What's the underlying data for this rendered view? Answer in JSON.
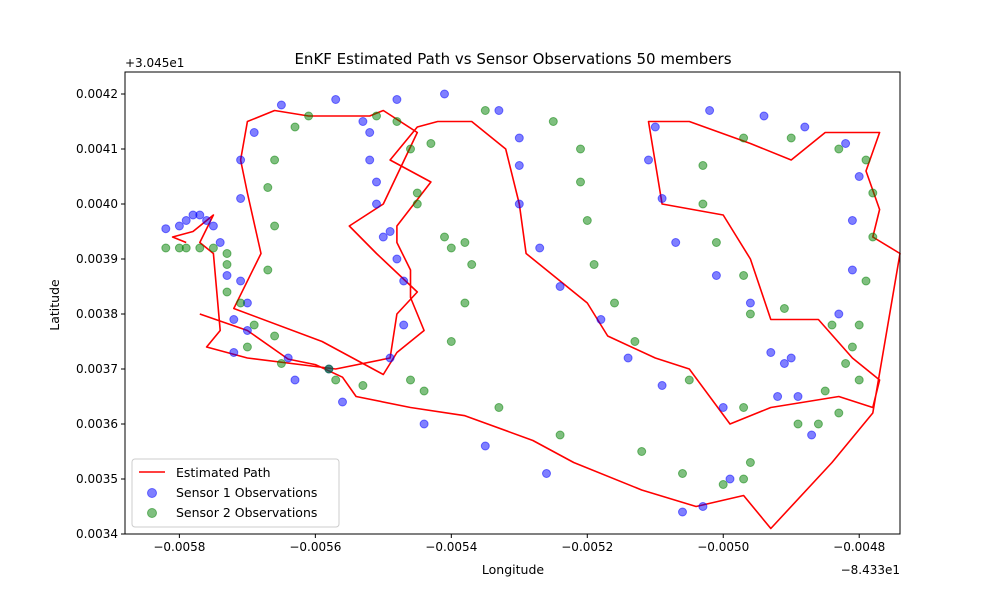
{
  "chart_data": {
    "type": "scatter",
    "title": "EnKF Estimated Path vs Sensor Observations 50 members",
    "xlabel": "Longitude",
    "ylabel": "Latitude",
    "x_offset_label": "−8.433e1",
    "y_offset_label": "+3.045e1",
    "xlim": [
      -0.00588,
      -0.00474
    ],
    "ylim": [
      0.0034,
      0.00424
    ],
    "xticks": [
      -0.0058,
      -0.0056,
      -0.0054,
      -0.0052,
      -0.005,
      -0.0048
    ],
    "xtick_labels": [
      "−0.0058",
      "−0.0056",
      "−0.0054",
      "−0.0052",
      "−0.0050",
      "−0.0048"
    ],
    "yticks": [
      0.0034,
      0.0035,
      0.0036,
      0.0037,
      0.0038,
      0.0039,
      0.004,
      0.0041,
      0.0042
    ],
    "ytick_labels": [
      "0.0034",
      "0.0035",
      "0.0036",
      "0.0037",
      "0.0038",
      "0.0039",
      "0.0040",
      "0.0041",
      "0.0042"
    ],
    "grid": false,
    "legend_position": "lower-left",
    "series": [
      {
        "name": "Estimated Path",
        "kind": "line",
        "color": "#ff0000",
        "points": [
          [
            -0.00577,
            0.0038
          ],
          [
            -0.0057,
            0.00377
          ],
          [
            -0.00564,
            0.003718
          ],
          [
            -0.0056,
            0.003708
          ],
          [
            -0.00556,
            0.003685
          ],
          [
            -0.00554,
            0.00365
          ],
          [
            -0.00546,
            0.00363
          ],
          [
            -0.00538,
            0.003615
          ],
          [
            -0.00528,
            0.00357
          ],
          [
            -0.00522,
            0.00353
          ],
          [
            -0.00512,
            0.00348
          ],
          [
            -0.00504,
            0.00345
          ],
          [
            -0.00497,
            0.00347
          ],
          [
            -0.00493,
            0.00341
          ],
          [
            -0.00484,
            0.00353
          ],
          [
            -0.00478,
            0.00362
          ],
          [
            -0.00474,
            0.00391
          ],
          [
            -0.00478,
            0.00394
          ],
          [
            -0.00477,
            0.00399
          ],
          [
            -0.00479,
            0.00406
          ],
          [
            -0.00477,
            0.00413
          ],
          [
            -0.00485,
            0.00413
          ],
          [
            -0.0049,
            0.00408
          ],
          [
            -0.00496,
            0.00411
          ],
          [
            -0.00505,
            0.00415
          ],
          [
            -0.00511,
            0.00415
          ],
          [
            -0.00509,
            0.004
          ],
          [
            -0.005,
            0.00398
          ],
          [
            -0.00496,
            0.0039
          ],
          [
            -0.00493,
            0.00379
          ],
          [
            -0.00486,
            0.00379
          ],
          [
            -0.00481,
            0.00372
          ],
          [
            -0.00477,
            0.00368
          ],
          [
            -0.00478,
            0.00363
          ],
          [
            -0.00483,
            0.00365
          ],
          [
            -0.00493,
            0.00363
          ],
          [
            -0.00499,
            0.0036
          ],
          [
            -0.00505,
            0.0037
          ],
          [
            -0.0051,
            0.00372
          ],
          [
            -0.00517,
            0.00376
          ],
          [
            -0.0052,
            0.00382
          ],
          [
            -0.00529,
            0.00391
          ],
          [
            -0.0053,
            0.004
          ],
          [
            -0.00532,
            0.0041
          ],
          [
            -0.00537,
            0.00415
          ],
          [
            -0.00542,
            0.00415
          ],
          [
            -0.00545,
            0.00414
          ],
          [
            -0.00549,
            0.00408
          ],
          [
            -0.00543,
            0.00404
          ],
          [
            -0.00548,
            0.00396
          ],
          [
            -0.00548,
            0.00393
          ],
          [
            -0.00546,
            0.00388
          ],
          [
            -0.00546,
            0.00383
          ],
          [
            -0.00544,
            0.00377
          ],
          [
            -0.00548,
            0.00373
          ],
          [
            -0.0055,
            0.00369
          ],
          [
            -0.00559,
            0.00375
          ],
          [
            -0.00572,
            0.00381
          ],
          [
            -0.00568,
            0.00391
          ],
          [
            -0.0057,
            0.00402
          ],
          [
            -0.00571,
            0.00408
          ],
          [
            -0.0057,
            0.00415
          ],
          [
            -0.00566,
            0.00417
          ],
          [
            -0.00561,
            0.00416
          ],
          [
            -0.00552,
            0.00416
          ],
          [
            -0.0055,
            0.00417
          ],
          [
            -0.00545,
            0.00413
          ],
          [
            -0.0055,
            0.004
          ],
          [
            -0.00555,
            0.00396
          ],
          [
            -0.00551,
            0.00391
          ],
          [
            -0.00545,
            0.00384
          ],
          [
            -0.00548,
            0.0038
          ],
          [
            -0.00549,
            0.00372
          ],
          [
            -0.00557,
            0.0037
          ],
          [
            -0.0057,
            0.00372
          ],
          [
            -0.00576,
            0.00374
          ],
          [
            -0.00574,
            0.00377
          ],
          [
            -0.00575,
            0.00391
          ],
          [
            -0.00577,
            0.00393
          ],
          [
            -0.00575,
            0.00398
          ],
          [
            -0.00578,
            0.00395
          ],
          [
            -0.00581,
            0.00394
          ],
          [
            -0.00579,
            0.00393
          ]
        ]
      },
      {
        "name": "Sensor 1 Observations",
        "kind": "scatter",
        "color": "#0000ff",
        "points": [
          [
            -0.00582,
            0.003955
          ],
          [
            -0.0058,
            0.00396
          ],
          [
            -0.00579,
            0.00397
          ],
          [
            -0.00578,
            0.00398
          ],
          [
            -0.00577,
            0.00398
          ],
          [
            -0.00576,
            0.00397
          ],
          [
            -0.00575,
            0.00396
          ],
          [
            -0.00574,
            0.00393
          ],
          [
            -0.00573,
            0.00387
          ],
          [
            -0.00571,
            0.00386
          ],
          [
            -0.0057,
            0.00382
          ],
          [
            -0.00572,
            0.00379
          ],
          [
            -0.0057,
            0.00377
          ],
          [
            -0.00572,
            0.00373
          ],
          [
            -0.00571,
            0.00401
          ],
          [
            -0.00571,
            0.00408
          ],
          [
            -0.00569,
            0.00413
          ],
          [
            -0.00565,
            0.00418
          ],
          [
            -0.00564,
            0.00372
          ],
          [
            -0.00563,
            0.00368
          ],
          [
            -0.00558,
            0.0037
          ],
          [
            -0.00556,
            0.00364
          ],
          [
            -0.00557,
            0.00419
          ],
          [
            -0.00553,
            0.00415
          ],
          [
            -0.00552,
            0.00413
          ],
          [
            -0.00552,
            0.00408
          ],
          [
            -0.00551,
            0.00404
          ],
          [
            -0.00551,
            0.004
          ],
          [
            -0.0055,
            0.00394
          ],
          [
            -0.00549,
            0.00395
          ],
          [
            -0.00548,
            0.0039
          ],
          [
            -0.00547,
            0.00386
          ],
          [
            -0.00547,
            0.00378
          ],
          [
            -0.00549,
            0.00372
          ],
          [
            -0.00544,
            0.0036
          ],
          [
            -0.00548,
            0.00419
          ],
          [
            -0.00541,
            0.0042
          ],
          [
            -0.00533,
            0.00417
          ],
          [
            -0.0053,
            0.00412
          ],
          [
            -0.0053,
            0.00407
          ],
          [
            -0.0053,
            0.004
          ],
          [
            -0.00527,
            0.00392
          ],
          [
            -0.00535,
            0.00356
          ],
          [
            -0.00526,
            0.00351
          ],
          [
            -0.00524,
            0.00385
          ],
          [
            -0.00518,
            0.00379
          ],
          [
            -0.00514,
            0.00372
          ],
          [
            -0.00511,
            0.00408
          ],
          [
            -0.0051,
            0.00414
          ],
          [
            -0.00509,
            0.00401
          ],
          [
            -0.00507,
            0.00393
          ],
          [
            -0.00509,
            0.00367
          ],
          [
            -0.00506,
            0.00344
          ],
          [
            -0.00503,
            0.00345
          ],
          [
            -0.00502,
            0.00417
          ],
          [
            -0.00501,
            0.00387
          ],
          [
            -0.005,
            0.00363
          ],
          [
            -0.00499,
            0.0035
          ],
          [
            -0.00496,
            0.00382
          ],
          [
            -0.00494,
            0.00416
          ],
          [
            -0.00493,
            0.00373
          ],
          [
            -0.00492,
            0.00365
          ],
          [
            -0.00491,
            0.00371
          ],
          [
            -0.0049,
            0.00372
          ],
          [
            -0.00489,
            0.00365
          ],
          [
            -0.00488,
            0.00414
          ],
          [
            -0.00487,
            0.00358
          ],
          [
            -0.00483,
            0.0038
          ],
          [
            -0.00481,
            0.00388
          ],
          [
            -0.00482,
            0.00411
          ],
          [
            -0.0048,
            0.00405
          ],
          [
            -0.00481,
            0.00397
          ]
        ]
      },
      {
        "name": "Sensor 2 Observations",
        "kind": "scatter",
        "color": "#008000",
        "points": [
          [
            -0.00582,
            0.00392
          ],
          [
            -0.0058,
            0.00392
          ],
          [
            -0.00579,
            0.00392
          ],
          [
            -0.00577,
            0.00392
          ],
          [
            -0.00575,
            0.00392
          ],
          [
            -0.00573,
            0.00391
          ],
          [
            -0.00573,
            0.00389
          ],
          [
            -0.00573,
            0.00384
          ],
          [
            -0.00571,
            0.00382
          ],
          [
            -0.0057,
            0.00374
          ],
          [
            -0.00569,
            0.00378
          ],
          [
            -0.00566,
            0.00376
          ],
          [
            -0.00565,
            0.00371
          ],
          [
            -0.00567,
            0.00388
          ],
          [
            -0.00567,
            0.00403
          ],
          [
            -0.00566,
            0.00408
          ],
          [
            -0.00566,
            0.00396
          ],
          [
            -0.00563,
            0.00414
          ],
          [
            -0.00561,
            0.00416
          ],
          [
            -0.00558,
            0.0037
          ],
          [
            -0.00557,
            0.00368
          ],
          [
            -0.00553,
            0.00367
          ],
          [
            -0.00551,
            0.00416
          ],
          [
            -0.00548,
            0.00415
          ],
          [
            -0.00546,
            0.0041
          ],
          [
            -0.00545,
            0.00402
          ],
          [
            -0.00545,
            0.004
          ],
          [
            -0.00543,
            0.00411
          ],
          [
            -0.00541,
            0.00394
          ],
          [
            -0.0054,
            0.00392
          ],
          [
            -0.00538,
            0.00393
          ],
          [
            -0.00537,
            0.00389
          ],
          [
            -0.00538,
            0.00382
          ],
          [
            -0.0054,
            0.00375
          ],
          [
            -0.00546,
            0.00368
          ],
          [
            -0.00544,
            0.00366
          ],
          [
            -0.00533,
            0.00363
          ],
          [
            -0.00535,
            0.00417
          ],
          [
            -0.00525,
            0.00415
          ],
          [
            -0.00521,
            0.0041
          ],
          [
            -0.00521,
            0.00404
          ],
          [
            -0.0052,
            0.00397
          ],
          [
            -0.00519,
            0.00389
          ],
          [
            -0.00516,
            0.00382
          ],
          [
            -0.00513,
            0.00375
          ],
          [
            -0.00512,
            0.00355
          ],
          [
            -0.00524,
            0.00358
          ],
          [
            -0.00505,
            0.00368
          ],
          [
            -0.00506,
            0.00351
          ],
          [
            -0.00503,
            0.00407
          ],
          [
            -0.00503,
            0.004
          ],
          [
            -0.00501,
            0.00393
          ],
          [
            -0.00497,
            0.00387
          ],
          [
            -0.00496,
            0.0038
          ],
          [
            -0.00497,
            0.00363
          ],
          [
            -0.00496,
            0.00353
          ],
          [
            -0.00497,
            0.0035
          ],
          [
            -0.005,
            0.00349
          ],
          [
            -0.00497,
            0.00412
          ],
          [
            -0.00491,
            0.00381
          ],
          [
            -0.0049,
            0.00412
          ],
          [
            -0.00489,
            0.0036
          ],
          [
            -0.00486,
            0.0036
          ],
          [
            -0.00485,
            0.00366
          ],
          [
            -0.00484,
            0.00378
          ],
          [
            -0.00483,
            0.0041
          ],
          [
            -0.00483,
            0.00362
          ],
          [
            -0.00482,
            0.00371
          ],
          [
            -0.00481,
            0.00374
          ],
          [
            -0.0048,
            0.00368
          ],
          [
            -0.0048,
            0.00378
          ],
          [
            -0.00479,
            0.00386
          ],
          [
            -0.00479,
            0.00408
          ],
          [
            -0.00478,
            0.00394
          ],
          [
            -0.00478,
            0.00402
          ]
        ]
      }
    ]
  }
}
